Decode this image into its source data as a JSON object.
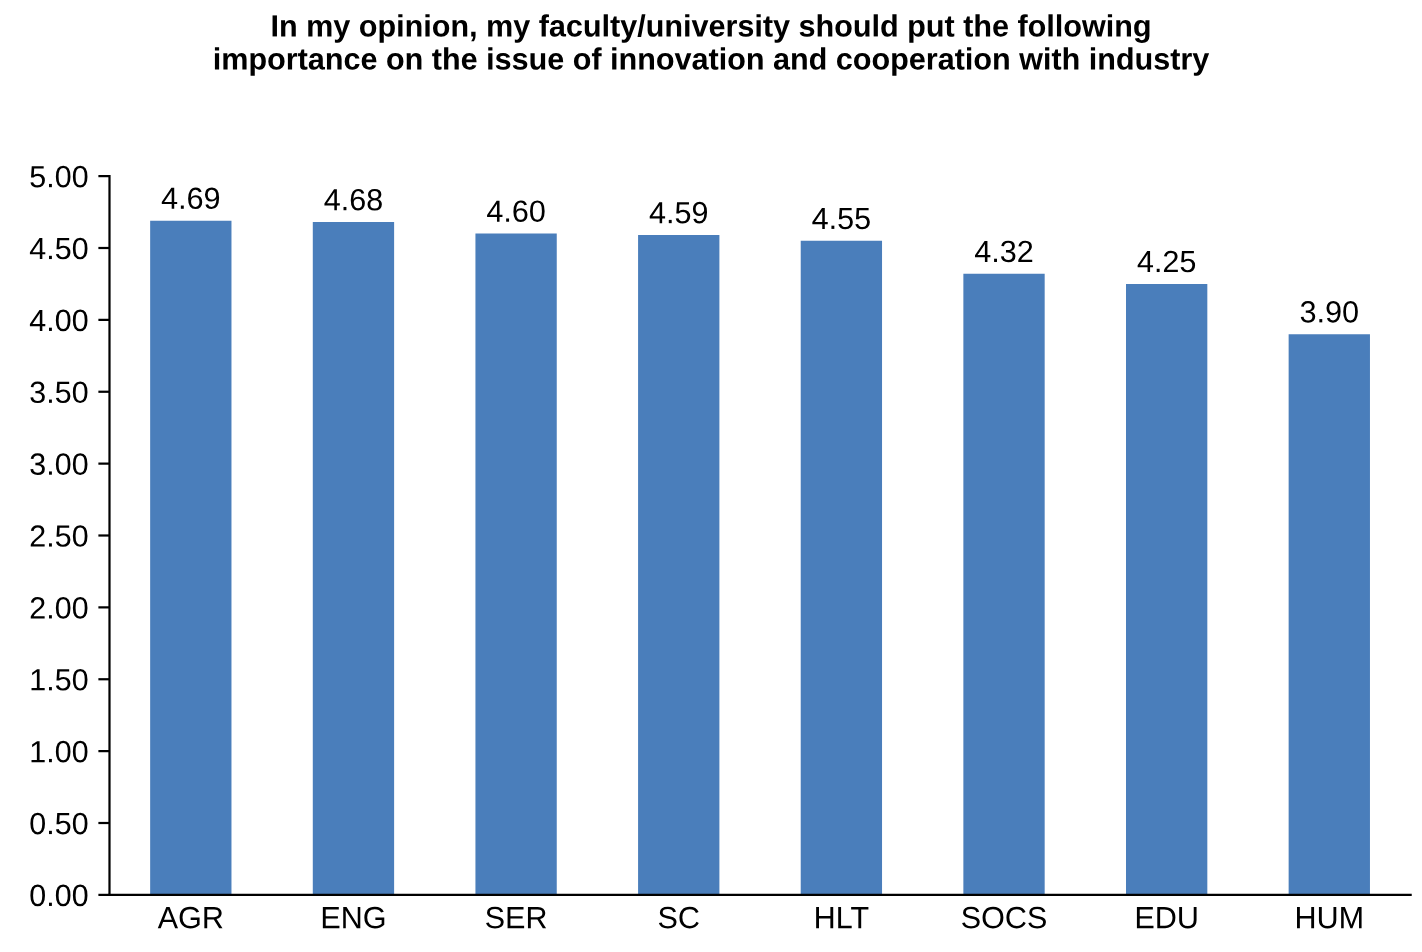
{
  "chart_data": {
    "type": "bar",
    "title": "In my opinion, my faculty/university should put the following\nimportance on the issue of innovation and cooperation with industry",
    "categories": [
      "AGR",
      "ENG",
      "SER",
      "SC",
      "HLT",
      "SOCS",
      "EDU",
      "HUM"
    ],
    "values": [
      4.69,
      4.68,
      4.6,
      4.59,
      4.55,
      4.32,
      4.25,
      3.9
    ],
    "value_labels": [
      "4.69",
      "4.68",
      "4.60",
      "4.59",
      "4.55",
      "4.32",
      "4.25",
      "3.90"
    ],
    "color": "#4a7ebb",
    "ylim": [
      0,
      5
    ],
    "yticks": [
      {
        "value": 0,
        "label": "0.00"
      },
      {
        "value": 0.5,
        "label": "0.50"
      },
      {
        "value": 1,
        "label": "1.00"
      },
      {
        "value": 1.5,
        "label": "1.50"
      },
      {
        "value": 2,
        "label": "2.00"
      },
      {
        "value": 2.5,
        "label": "2.50"
      },
      {
        "value": 3,
        "label": "3.00"
      },
      {
        "value": 3.5,
        "label": "3.50"
      },
      {
        "value": 4,
        "label": "4.00"
      },
      {
        "value": 4.5,
        "label": "4.50"
      },
      {
        "value": 5,
        "label": "5.00"
      }
    ],
    "grid": false,
    "legend": false
  }
}
